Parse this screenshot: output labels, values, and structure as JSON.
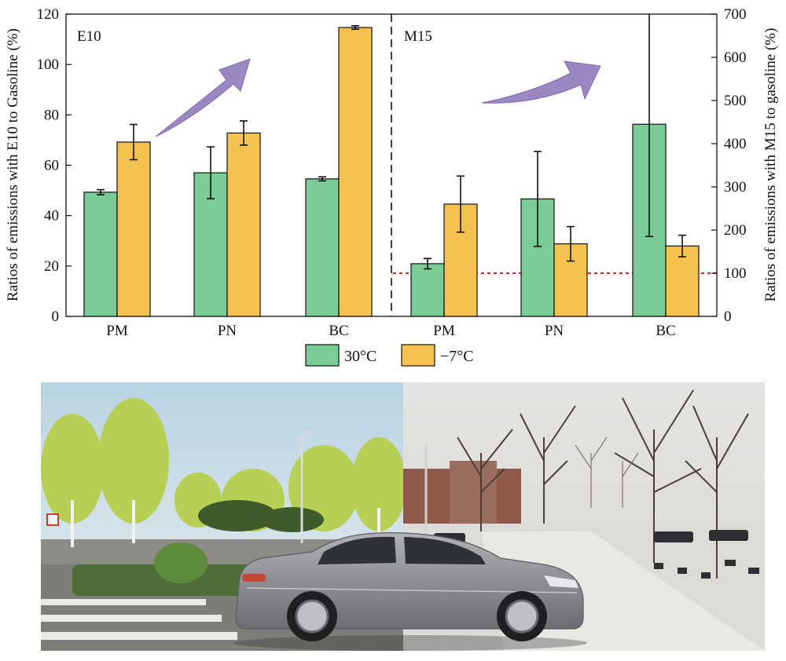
{
  "chart_data": [
    {
      "type": "bar",
      "panel_label": "E10",
      "categories": [
        "PM",
        "PN",
        "BC"
      ],
      "series": [
        {
          "name": "30°C",
          "color": "#79cc96",
          "values": [
            49.3,
            57,
            54.6
          ],
          "errors": [
            1.0,
            10.3,
            0.8
          ]
        },
        {
          "name": "−7°C",
          "color": "#f5c251",
          "values": [
            69.2,
            72.8,
            114.7
          ],
          "errors": [
            7.0,
            4.8,
            0.7
          ]
        }
      ],
      "ylabel": "Ratios of emissions with E10 to Gasoline (%)",
      "ylim": [
        0,
        120
      ],
      "yticks": [
        0,
        20,
        40,
        60,
        80,
        100,
        120
      ],
      "axis": "left"
    },
    {
      "type": "bar",
      "panel_label": "M15",
      "categories": [
        "PM",
        "PN",
        "BC"
      ],
      "series": [
        {
          "name": "30°C",
          "color": "#79cc96",
          "values": [
            122,
            272,
            445
          ],
          "errors": [
            12,
            110,
            260
          ]
        },
        {
          "name": "−7°C",
          "color": "#f5c251",
          "values": [
            260,
            168,
            163
          ],
          "errors": [
            65,
            40,
            25
          ]
        }
      ],
      "ylabel": "Ratios of emissions with M15 to gasoline (%)",
      "ylim": [
        0,
        700
      ],
      "yticks": [
        0,
        100,
        200,
        300,
        400,
        500,
        600,
        700
      ],
      "axis": "right",
      "reference_line": {
        "value": 100,
        "color": "#e0201b",
        "style": "dotted"
      }
    }
  ],
  "legend": {
    "placement": "bottom-center",
    "items": [
      {
        "label": "30°C",
        "color": "#79cc96"
      },
      {
        "label": "−7°C",
        "color": "#f5c251"
      }
    ]
  },
  "colors": {
    "arrow": "#9b88c2",
    "divider": "#111111"
  },
  "photo": {
    "left_scene": "green-trees-spring-road",
    "right_scene": "snowy-winter-road",
    "car_color": "#8d8c90"
  }
}
